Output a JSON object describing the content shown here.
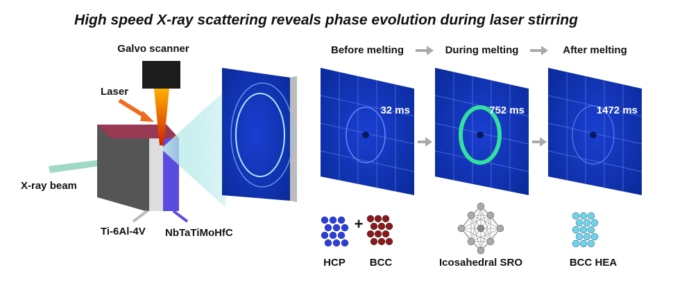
{
  "title": "High speed X-ray scattering reveals phase evolution during laser stirring",
  "setup": {
    "scanner": "Galvo scanner",
    "laser": "Laser",
    "xray": "X-ray beam",
    "substrate": "Ti-6Al-4V",
    "powder": "NbTaTiMoHfC"
  },
  "panels": [
    {
      "stage": "Before melting",
      "time": "32 ms",
      "structures": [
        "HCP",
        "BCC"
      ],
      "joiner": "+"
    },
    {
      "stage": "During melting",
      "time": "752 ms",
      "structures": [
        "Icosahedral SRO"
      ]
    },
    {
      "stage": "After melting",
      "time": "1472 ms",
      "structures": [
        "BCC HEA"
      ]
    }
  ]
}
